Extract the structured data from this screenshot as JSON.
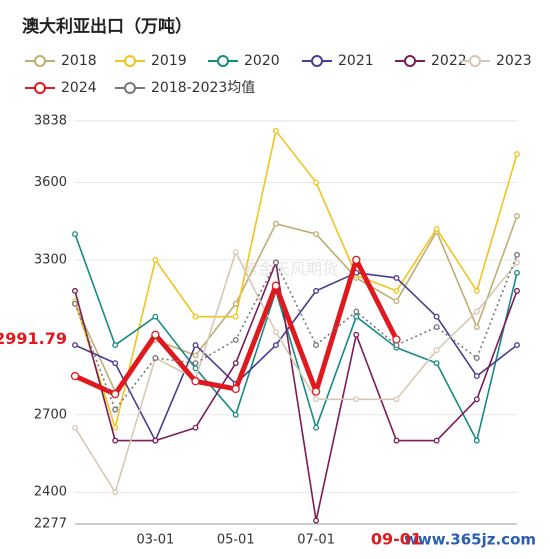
{
  "chart_data": {
    "type": "line",
    "title": "澳大利亚出口（万吨）",
    "watermark": "紫金天风期货",
    "site_watermark": "www.365jz.com",
    "categories": [
      null,
      null,
      "03-01",
      null,
      "05-01",
      null,
      "07-01",
      null,
      "09-01",
      null,
      null,
      null
    ],
    "highlight_category": 8,
    "ylim": [
      2277,
      3838
    ],
    "yticks": [
      2277,
      2400,
      2700,
      3300,
      3600,
      3838
    ],
    "grid": true,
    "legend": "top",
    "annotation": {
      "value": 2991.79,
      "label": "2991.79"
    },
    "series": [
      {
        "name": "2018",
        "color": "#bfae72",
        "values": [
          3130,
          2790,
          2990,
          2930,
          3130,
          3440,
          3400,
          3230,
          3140,
          3410,
          3040,
          3470
        ]
      },
      {
        "name": "2019",
        "color": "#f2c31b",
        "values": [
          3140,
          2650,
          3300,
          3080,
          3080,
          3800,
          3600,
          3240,
          3180,
          3420,
          3180,
          3710
        ]
      },
      {
        "name": "2020",
        "color": "#178a86",
        "values": [
          3400,
          2970,
          3080,
          2880,
          2700,
          3180,
          2650,
          3080,
          2960,
          2900,
          2600,
          3250
        ]
      },
      {
        "name": "2021",
        "color": "#4a3c8f",
        "values": [
          2970,
          2900,
          2600,
          2970,
          2820,
          2970,
          3180,
          3250,
          3230,
          3080,
          2850,
          2970
        ]
      },
      {
        "name": "2022",
        "color": "#7b1c58",
        "values": [
          3180,
          2600,
          2600,
          2650,
          2900,
          3290,
          2290,
          3010,
          2600,
          2600,
          2760,
          3180
        ]
      },
      {
        "name": "2023",
        "color": "#d6c8b4",
        "values": [
          2650,
          2400,
          2920,
          2840,
          3330,
          3020,
          2760,
          2760,
          2760,
          2950,
          3100,
          3290
        ]
      },
      {
        "name": "2024",
        "color": "#e0191e",
        "width": 5,
        "values": [
          2850,
          2780,
          3010,
          2830,
          2800,
          3200,
          2790,
          3300,
          2991.79,
          null,
          null,
          null
        ]
      },
      {
        "name": "2018-2023均值",
        "color": "#777777",
        "dash": true,
        "values": [
          3130,
          2720,
          2920,
          2900,
          2990,
          3290,
          2970,
          3100,
          2970,
          3040,
          2920,
          3320
        ]
      }
    ]
  }
}
